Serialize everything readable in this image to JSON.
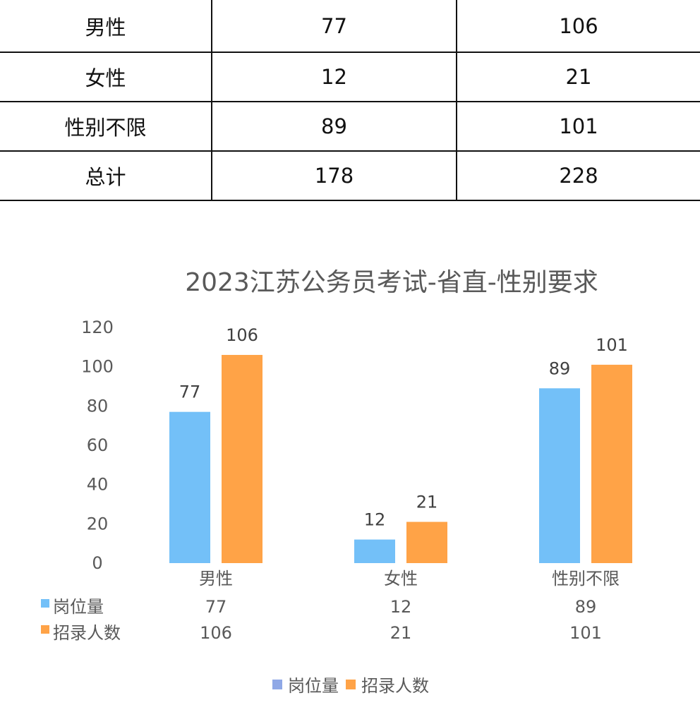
{
  "table": {
    "rows": [
      {
        "label": "男性",
        "positions": "77",
        "recruits": "106"
      },
      {
        "label": "女性",
        "positions": "12",
        "recruits": "21"
      },
      {
        "label": "性别不限",
        "positions": "89",
        "recruits": "101"
      },
      {
        "label": "总计",
        "positions": "178",
        "recruits": "228"
      }
    ]
  },
  "chart_data": {
    "type": "bar",
    "title": "2023江苏公务员考试-省直-性别要求",
    "categories": [
      "男性",
      "女性",
      "性别不限"
    ],
    "series": [
      {
        "name": "岗位量",
        "values": [
          77,
          12,
          89
        ],
        "color": "#73C0F8"
      },
      {
        "name": "招录人数",
        "values": [
          106,
          21,
          101
        ],
        "color": "#FFA347"
      }
    ],
    "ylim": [
      0,
      120
    ],
    "yticks": [
      0,
      20,
      40,
      60,
      80,
      100,
      120
    ],
    "grid": false,
    "legend": "bottom",
    "data_table": true
  }
}
